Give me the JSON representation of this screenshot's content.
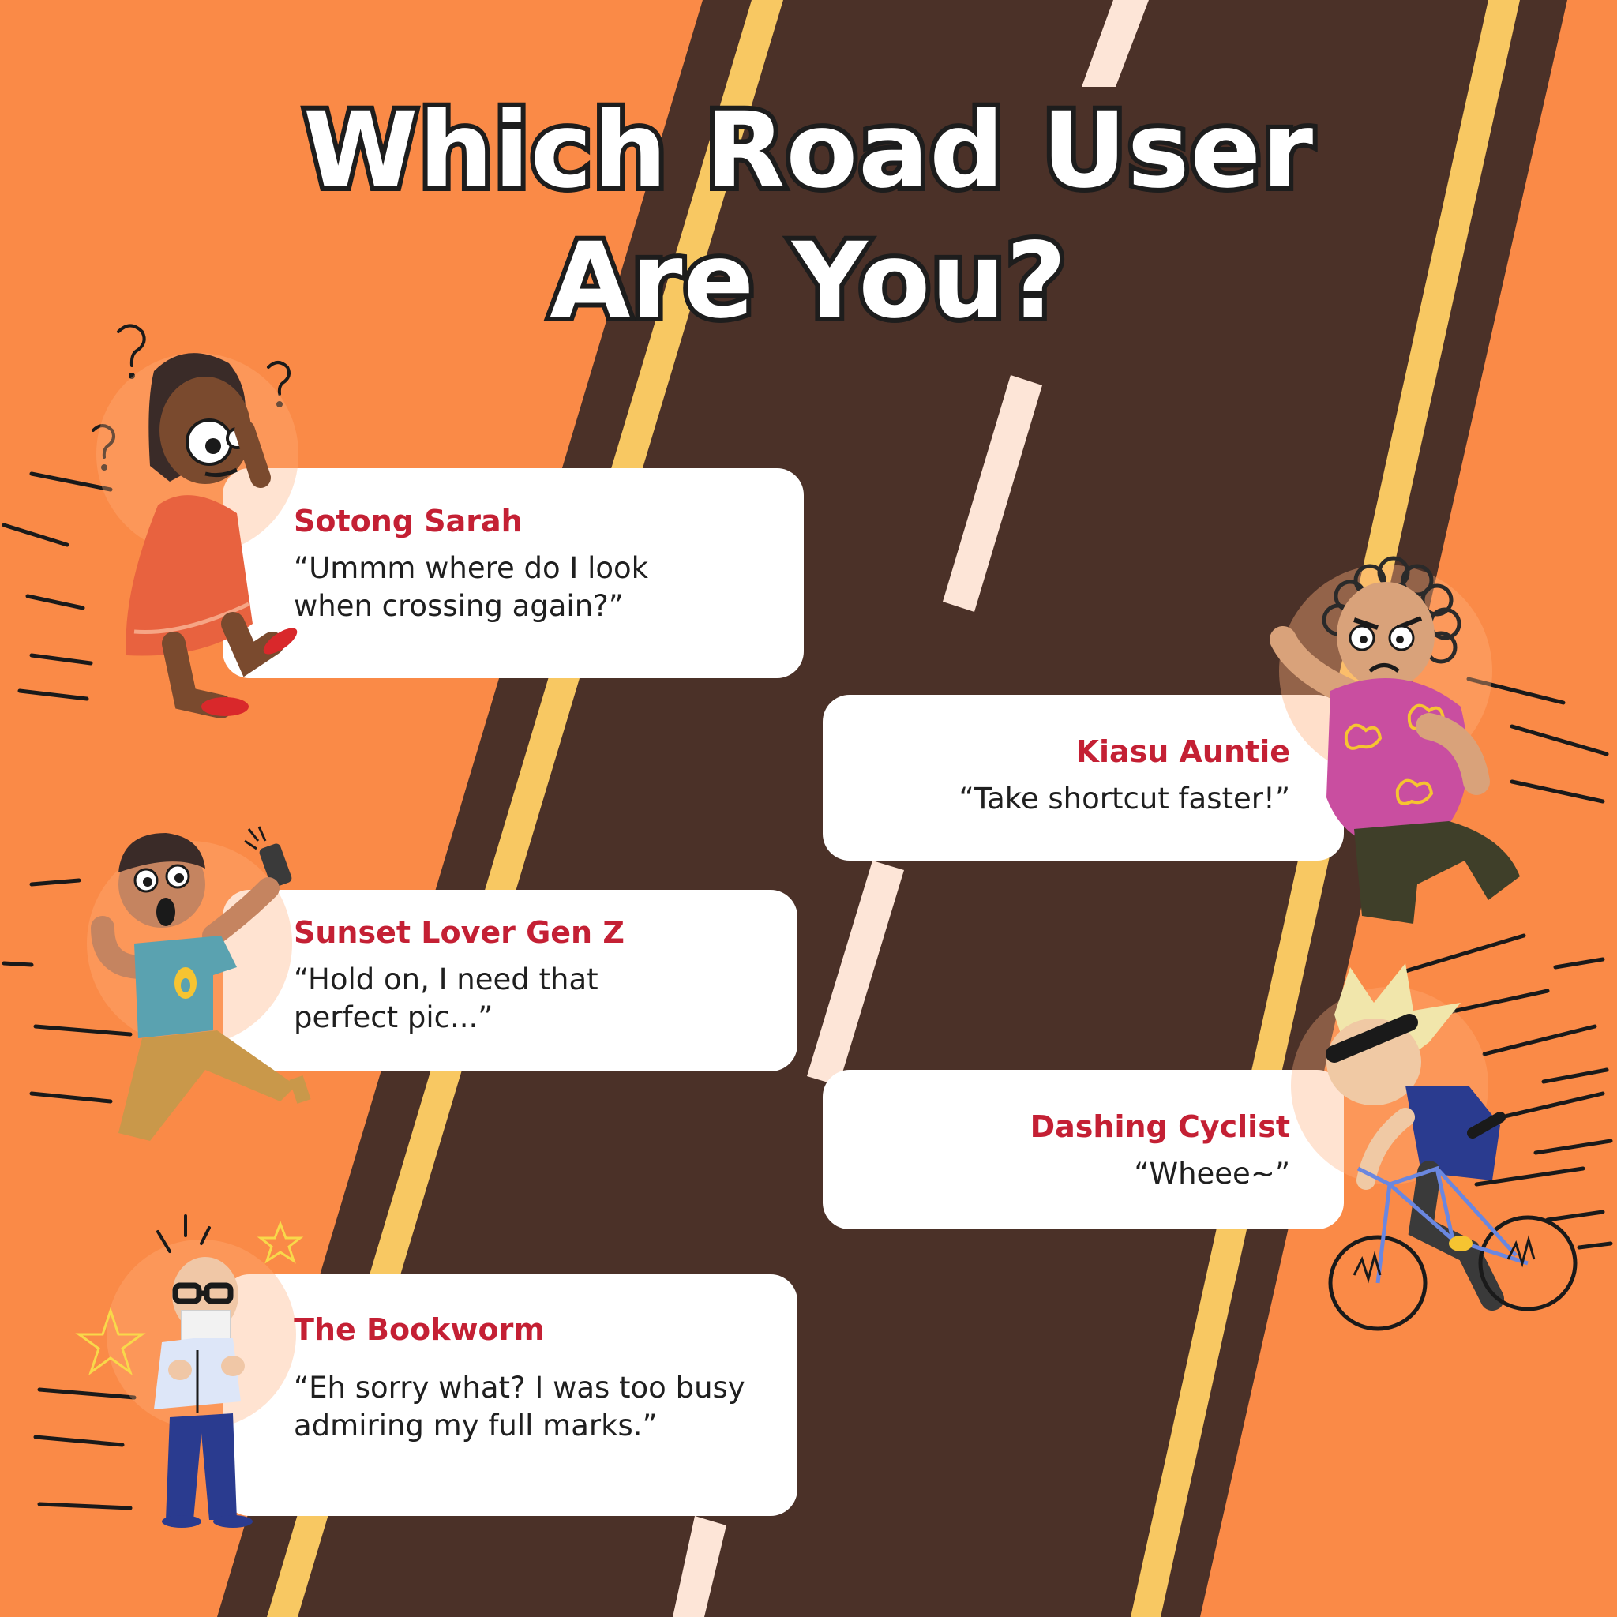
{
  "title": {
    "line1": "Which Road User",
    "line2": "Are You?"
  },
  "colors": {
    "background": "#fa8a47",
    "road": "#4b3128",
    "road_edge": "#f8c862",
    "lane_dash": "#fde5d7",
    "name_red": "#c42034",
    "card": "#ffffff"
  },
  "road_users": [
    {
      "name": "Sotong Sarah",
      "quote": "“Ummm where do I look when crossing again?”"
    },
    {
      "name": "Kiasu Auntie",
      "quote": "“Take shortcut faster!”"
    },
    {
      "name": "Sunset Lover Gen Z",
      "quote": "“Hold on, I need that perfect pic...”"
    },
    {
      "name": "Dashing Cyclist",
      "quote": "“Wheee~”"
    },
    {
      "name": "The Bookworm",
      "quote": "“Eh sorry what? I was too busy admiring my full marks.”"
    }
  ],
  "icons": [
    "question-mark-icon",
    "phone-icon",
    "glasses-icon",
    "star-icon",
    "bicycle-icon",
    "speed-lines-icon"
  ]
}
